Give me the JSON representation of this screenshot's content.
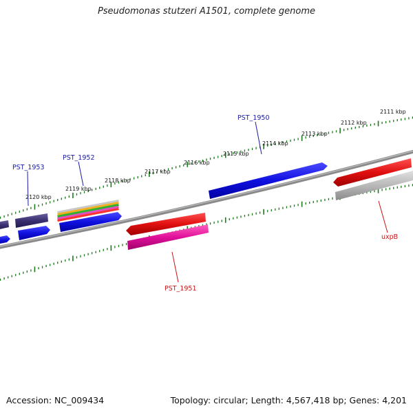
{
  "title": "Pseudomonas stutzeri A1501, complete genome",
  "footer": {
    "accession": "Accession: NC_009434",
    "summary": "Topology: circular; Length: 4,567,418 bp; Genes: 4,201"
  },
  "ruler_labels": [
    "2111 kbp",
    "2112 kbp",
    "2113 kbp",
    "2114 kbp",
    "2115 kbp",
    "2116 kbp",
    "2117 kbp",
    "2118 kbp",
    "2119 kbp",
    "2120 kbp"
  ],
  "gene_labels": [
    {
      "id": "PST_1950",
      "color": "#1a1aa6"
    },
    {
      "id": "PST_1952",
      "color": "#1a1aa6"
    },
    {
      "id": "PST_1953",
      "color": "#1a1aa6"
    },
    {
      "id": "PST_1951",
      "color": "#cc1111"
    },
    {
      "id": "uxpB",
      "color": "#cc1111"
    }
  ],
  "colors": {
    "forward_gene": "#1010e0",
    "reverse_gene": "#e01010",
    "pseudogene_reverse": "#e0109a",
    "grey_feature": "#b8b8b8",
    "dark_feature": "#3a3070",
    "backbone": "#808080",
    "tick": "#1a7a1a"
  }
}
